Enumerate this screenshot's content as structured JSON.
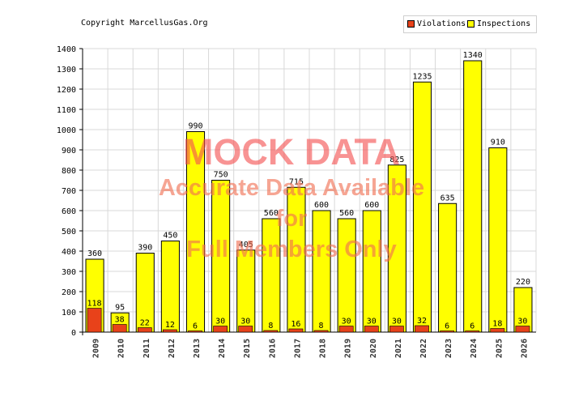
{
  "header": {
    "copyright": "Copyright MarcellusGas.Org"
  },
  "legend": [
    {
      "label": "Violations",
      "color": "#e8421a"
    },
    {
      "label": "Inspections",
      "color": "#ffff00"
    }
  ],
  "watermark": {
    "line1": "MOCK DATA",
    "line2": "Accurate Data Available",
    "line3": "for",
    "line4": "Full Members Only"
  },
  "chart_data": {
    "type": "bar",
    "categories": [
      "2009",
      "2010",
      "2011",
      "2012",
      "2013",
      "2014",
      "2015",
      "2016",
      "2017",
      "2018",
      "2019",
      "2020",
      "2021",
      "2022",
      "2023",
      "2024",
      "2025",
      "2026"
    ],
    "series": [
      {
        "name": "Violations",
        "color": "#e8421a",
        "values": [
          118,
          38,
          22,
          12,
          6,
          30,
          30,
          8,
          16,
          8,
          30,
          30,
          30,
          32,
          6,
          6,
          18,
          30
        ]
      },
      {
        "name": "Inspections",
        "color": "#ffff00",
        "values": [
          360,
          95,
          390,
          450,
          990,
          750,
          405,
          560,
          715,
          600,
          560,
          600,
          825,
          1235,
          635,
          1340,
          910,
          220
        ]
      }
    ],
    "ylim": [
      0,
      1400
    ],
    "yticks": [
      0,
      100,
      200,
      300,
      400,
      500,
      600,
      700,
      800,
      900,
      1000,
      1100,
      1200,
      1300,
      1400
    ],
    "grid": true,
    "legend_position": "top-right"
  }
}
